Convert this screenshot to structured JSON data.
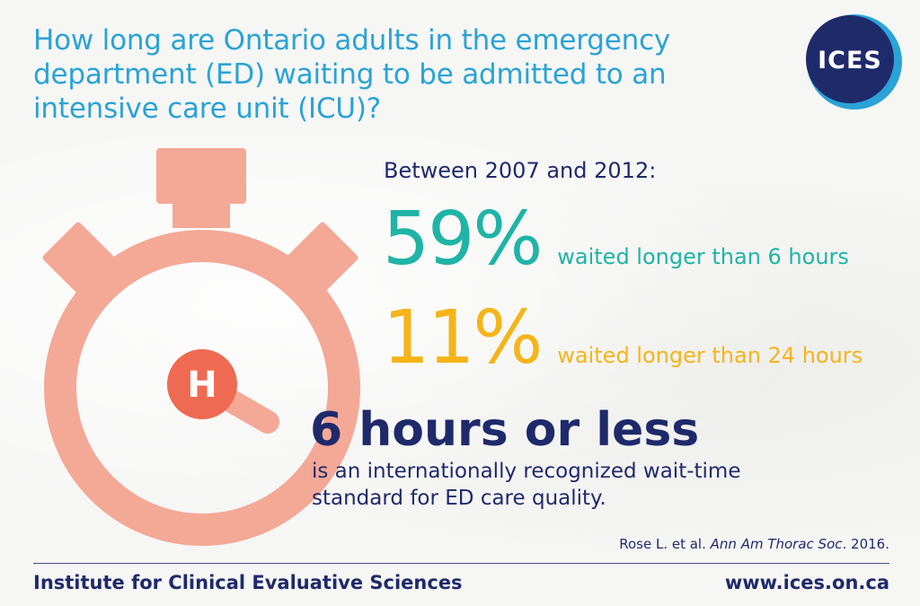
{
  "header": {
    "title": "How long are Ontario adults in the emergency department (ED) waiting to be admitted to an intensive care unit (ICU)?",
    "logo_text": "ICES"
  },
  "illustration": {
    "icon": "stopwatch-icon",
    "hospital_letter": "H"
  },
  "stats": {
    "period": "Between 2007 and 2012:",
    "items": [
      {
        "value": "59%",
        "label": "waited longer than 6 hours",
        "color": "#1fb4a6"
      },
      {
        "value": "11%",
        "label": "waited longer than 24 hours",
        "color": "#f5b418"
      }
    ]
  },
  "standard": {
    "headline": "6 hours or less",
    "body": "is an internationally recognized wait-time standard for ED care quality."
  },
  "citation": {
    "authors": "Rose L. et al.",
    "journal": "Ann Am Thorac Soc",
    "year": ". 2016."
  },
  "footer": {
    "organization": "Institute for Clinical Evaluative Sciences",
    "url": "www.ices.on.ca"
  },
  "colors": {
    "title": "#2aa3d6",
    "navy": "#1f2a6b",
    "timer": "#f4a896",
    "hospital": "#ef6a52"
  }
}
